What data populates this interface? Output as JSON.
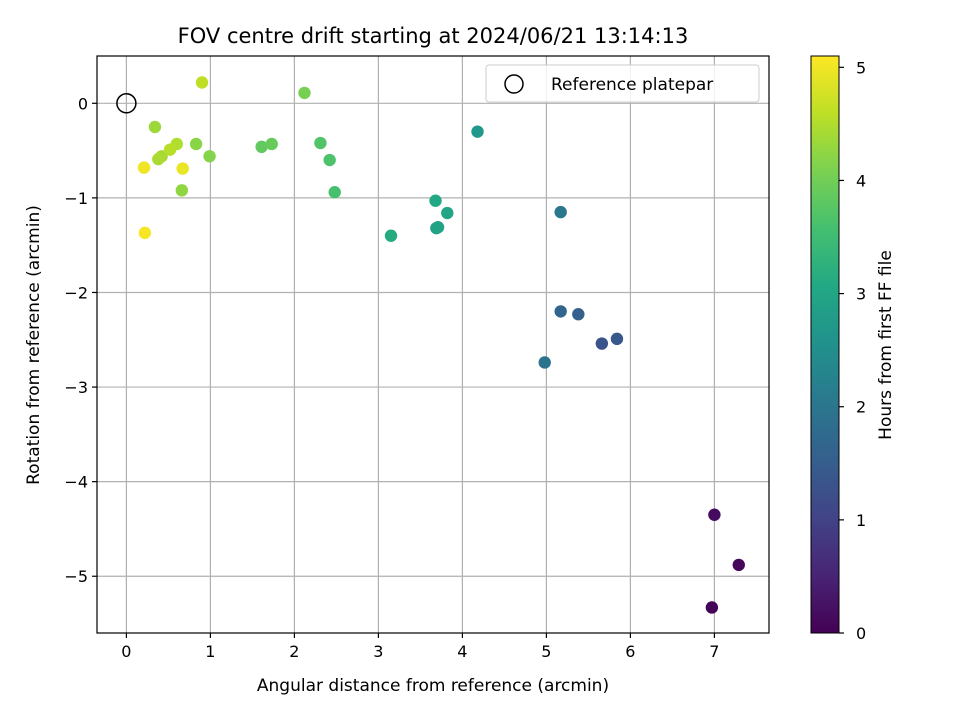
{
  "chart_data": {
    "type": "scatter",
    "title": "FOV centre drift starting at 2024/06/21 13:14:13",
    "xlabel": "Angular distance from reference (arcmin)",
    "ylabel": "Rotation from reference (arcmin)",
    "xlim": [
      -0.35,
      7.65
    ],
    "ylim": [
      -5.6,
      0.5
    ],
    "xticks": [
      0,
      1,
      2,
      3,
      4,
      5,
      6,
      7
    ],
    "yticks": [
      0,
      -1,
      -2,
      -3,
      -4,
      -5
    ],
    "xtick_labels": [
      "0",
      "1",
      "2",
      "3",
      "4",
      "5",
      "6",
      "7"
    ],
    "ytick_labels": [
      "0",
      "−1",
      "−2",
      "−3",
      "−4",
      "−5"
    ],
    "grid": true,
    "legend": {
      "placement": "top-right",
      "entries": [
        "Reference platepar"
      ]
    },
    "reference_point": {
      "x": 0,
      "y": 0
    },
    "colorbar": {
      "label": "Hours from first FF file",
      "min": 0,
      "max": 5.1,
      "ticks": [
        0,
        1,
        2,
        3,
        4,
        5
      ],
      "tick_labels": [
        "0",
        "1",
        "2",
        "3",
        "4",
        "5"
      ],
      "colormap": "viridis"
    },
    "points": [
      {
        "x": 6.97,
        "y": -5.33,
        "c": 0.05
      },
      {
        "x": 7.29,
        "y": -4.88,
        "c": 0.1
      },
      {
        "x": 7.0,
        "y": -4.35,
        "c": 0.15
      },
      {
        "x": 5.66,
        "y": -2.54,
        "c": 1.3
      },
      {
        "x": 5.84,
        "y": -2.49,
        "c": 1.4
      },
      {
        "x": 5.38,
        "y": -2.23,
        "c": 1.55
      },
      {
        "x": 5.17,
        "y": -2.2,
        "c": 1.65
      },
      {
        "x": 4.98,
        "y": -2.74,
        "c": 1.95
      },
      {
        "x": 5.17,
        "y": -1.15,
        "c": 2.05
      },
      {
        "x": 4.18,
        "y": -0.3,
        "c": 2.7
      },
      {
        "x": 3.69,
        "y": -1.32,
        "c": 2.9
      },
      {
        "x": 3.71,
        "y": -1.31,
        "c": 2.95
      },
      {
        "x": 3.82,
        "y": -1.16,
        "c": 3.0
      },
      {
        "x": 3.68,
        "y": -1.03,
        "c": 3.05
      },
      {
        "x": 3.15,
        "y": -1.4,
        "c": 3.1
      },
      {
        "x": 2.48,
        "y": -0.94,
        "c": 3.6
      },
      {
        "x": 2.42,
        "y": -0.6,
        "c": 3.65
      },
      {
        "x": 2.31,
        "y": -0.42,
        "c": 3.7
      },
      {
        "x": 1.61,
        "y": -0.46,
        "c": 3.85
      },
      {
        "x": 1.73,
        "y": -0.43,
        "c": 3.9
      },
      {
        "x": 2.12,
        "y": 0.11,
        "c": 4.05
      },
      {
        "x": 0.99,
        "y": -0.56,
        "c": 4.15
      },
      {
        "x": 0.83,
        "y": -0.43,
        "c": 4.2
      },
      {
        "x": 0.66,
        "y": -0.92,
        "c": 4.25
      },
      {
        "x": 0.34,
        "y": -0.25,
        "c": 4.35
      },
      {
        "x": 0.42,
        "y": -0.56,
        "c": 4.4
      },
      {
        "x": 0.38,
        "y": -0.59,
        "c": 4.45
      },
      {
        "x": 0.6,
        "y": -0.43,
        "c": 4.5
      },
      {
        "x": 0.52,
        "y": -0.49,
        "c": 4.55
      },
      {
        "x": 0.9,
        "y": 0.22,
        "c": 4.6
      },
      {
        "x": 0.67,
        "y": -0.69,
        "c": 4.95
      },
      {
        "x": 0.21,
        "y": -0.68,
        "c": 5.0
      },
      {
        "x": 0.22,
        "y": -1.37,
        "c": 5.05
      }
    ]
  }
}
